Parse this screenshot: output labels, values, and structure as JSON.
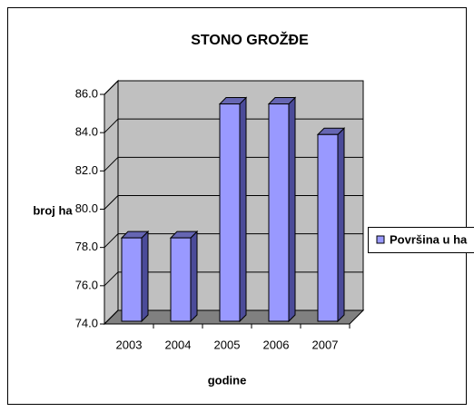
{
  "chart_data": {
    "type": "bar",
    "title": "STONO GROŽĐE",
    "x_label": "godine",
    "y_label": "broj ha",
    "categories": [
      "2003",
      "2004",
      "2005",
      "2006",
      "2007"
    ],
    "series": [
      {
        "name": "Površina u ha",
        "color": "#9999ff",
        "values": [
          78.5,
          78.5,
          85.5,
          85.5,
          83.9
        ]
      }
    ],
    "ylim": [
      74,
      86
    ],
    "yticks": [
      {
        "value": 74,
        "label": "74.0"
      },
      {
        "value": 76,
        "label": "76.0"
      },
      {
        "value": 78,
        "label": "78.0"
      },
      {
        "value": 80,
        "label": "80.0"
      },
      {
        "value": 82,
        "label": "82.0"
      },
      {
        "value": 84,
        "label": "84.0"
      },
      {
        "value": 86,
        "label": "86.0"
      }
    ],
    "grid": true,
    "legend": "right"
  }
}
